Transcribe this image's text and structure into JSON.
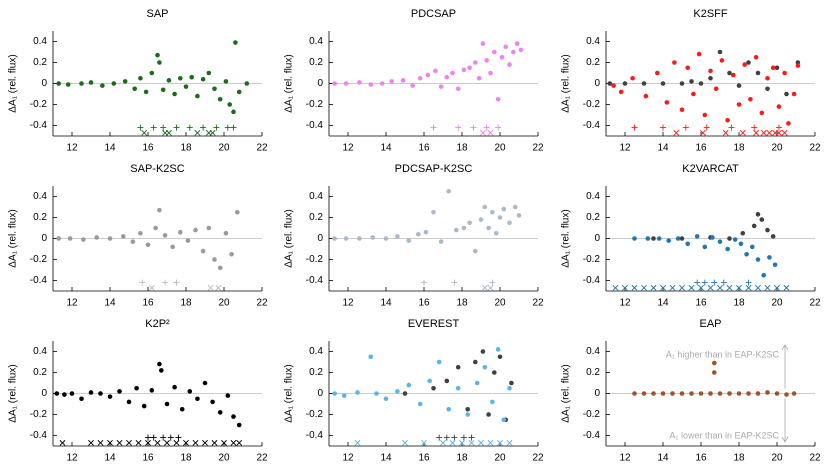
{
  "chart_data": [
    {
      "type": "scatter",
      "title": "SAP",
      "ylabel": "ΔA₁ (rel. flux)",
      "xlim": [
        11,
        22
      ],
      "ylim": [
        -0.5,
        0.5
      ],
      "xticks": [
        12,
        14,
        16,
        18,
        20,
        22
      ],
      "yticks": [
        -0.4,
        -0.2,
        0,
        0.2,
        0.4
      ],
      "zero_line": true,
      "series": [
        {
          "color": "#1b6b1b",
          "marker": "circle",
          "x": [
            11.3,
            11.8,
            12.5,
            13.0,
            13.6,
            14.2,
            14.8,
            15.3,
            15.6,
            15.9,
            16.2,
            16.5,
            16.6,
            16.8,
            17.1,
            17.4,
            17.7,
            18.0,
            18.3,
            18.6,
            18.9,
            19.2,
            19.5,
            19.8,
            20.1,
            20.3,
            20.5,
            20.6,
            20.8,
            21.2
          ],
          "values": [
            0,
            -0.01,
            0,
            0.01,
            -0.02,
            0,
            0.02,
            -0.05,
            0.05,
            -0.08,
            0.1,
            0.27,
            0.2,
            -0.06,
            0.03,
            -0.1,
            0.05,
            -0.03,
            0.06,
            -0.12,
            0.04,
            0.1,
            -0.05,
            -0.15,
            0.02,
            -0.2,
            -0.27,
            0.39,
            -0.08,
            0
          ]
        },
        {
          "color": "#1b6b1b",
          "marker": "plus",
          "x": [
            15.6,
            16.3,
            16.8,
            17.5,
            18.2,
            18.9,
            19.6,
            20.2,
            20.5
          ],
          "y": -0.42
        },
        {
          "color": "#1b6b1b",
          "marker": "cross",
          "x": [
            15.8,
            16.9,
            17.1,
            18.6,
            19.2,
            19.4
          ],
          "y": -0.47
        }
      ]
    },
    {
      "type": "scatter",
      "title": "PDCSAP",
      "ylabel": "ΔA₁ (rel. flux)",
      "xlim": [
        11,
        22
      ],
      "ylim": [
        -0.5,
        0.5
      ],
      "xticks": [
        12,
        14,
        16,
        18,
        20,
        22
      ],
      "yticks": [
        -0.4,
        -0.2,
        0,
        0.2,
        0.4
      ],
      "zero_line": true,
      "series": [
        {
          "color": "#ee82ee",
          "marker": "circle",
          "x": [
            11.3,
            11.9,
            12.6,
            13.2,
            13.8,
            14.3,
            14.9,
            15.4,
            15.8,
            16.2,
            16.6,
            16.9,
            17.2,
            17.5,
            17.8,
            18.1,
            18.4,
            18.7,
            18.9,
            19.1,
            19.3,
            19.5,
            19.7,
            19.9,
            20.1,
            20.3,
            20.5,
            20.7,
            20.9,
            21.1
          ],
          "values": [
            0,
            0,
            0.01,
            -0.01,
            0,
            0.02,
            0.03,
            -0.02,
            0.05,
            0.08,
            0.12,
            -0.03,
            0.06,
            0.1,
            -0.05,
            0.13,
            0.15,
            0.2,
            0.05,
            0.38,
            0.22,
            0.1,
            0.3,
            -0.15,
            0.25,
            0.35,
            0.18,
            0.3,
            0.38,
            0.32
          ]
        },
        {
          "color": "#ee82ee",
          "marker": "plus",
          "x": [
            16.5,
            17.8,
            18.6,
            19.3,
            19.9
          ],
          "y": -0.42
        },
        {
          "color": "#ee82ee",
          "marker": "cross",
          "x": [
            19.1,
            19.5
          ],
          "y": -0.47
        }
      ]
    },
    {
      "type": "scatter",
      "title": "K2SFF",
      "ylabel": "ΔA₁ (rel. flux)",
      "xlim": [
        11,
        22
      ],
      "ylim": [
        -0.5,
        0.5
      ],
      "xticks": [
        12,
        14,
        16,
        18,
        20,
        22
      ],
      "yticks": [
        -0.4,
        -0.2,
        0,
        0.2,
        0.4
      ],
      "zero_line": true,
      "series": [
        {
          "color": "#404040",
          "marker": "circle",
          "x": [
            11.2,
            12,
            13,
            14,
            15,
            15.5,
            16,
            16.5,
            17,
            17.5,
            18,
            18.5,
            19,
            19.5,
            20,
            20.5,
            21.1
          ],
          "values": [
            0,
            0,
            0,
            0,
            0,
            0.02,
            0,
            0.05,
            0.3,
            0.1,
            -0.02,
            0.2,
            0.1,
            -0.05,
            0.15,
            -0.1,
            0.2
          ]
        },
        {
          "color": "#ff1a1a",
          "marker": "circle",
          "x": [
            11.4,
            11.8,
            12.4,
            13.1,
            13.7,
            14.2,
            14.6,
            15.0,
            15.3,
            15.6,
            15.9,
            16.2,
            16.5,
            16.8,
            17.1,
            17.4,
            17.7,
            18.0,
            18.3,
            18.6,
            18.9,
            19.2,
            19.5,
            19.8,
            20.1,
            20.4,
            20.6,
            20.9,
            21.1
          ],
          "values": [
            -0.02,
            -0.08,
            0.05,
            -0.12,
            0.1,
            -0.18,
            0.2,
            -0.25,
            0.15,
            -0.1,
            0.28,
            -0.3,
            0.12,
            -0.05,
            0.22,
            -0.35,
            0.08,
            -0.2,
            0.18,
            -0.15,
            0.25,
            -0.28,
            0.05,
            0.15,
            -0.22,
            0.1,
            -0.38,
            -0.1,
            0.17
          ]
        },
        {
          "color": "#ff1a1a",
          "marker": "plus",
          "x": [
            12.5,
            14,
            15.2,
            16.3,
            17.6,
            18.8,
            20.1
          ],
          "y": -0.42
        },
        {
          "color": "#ff1a1a",
          "marker": "cross",
          "x": [
            14.7,
            16.1,
            17.3,
            18.2,
            18.9,
            19.3,
            19.6,
            19.9,
            20.1,
            20.4
          ],
          "y": -0.47
        }
      ]
    },
    {
      "type": "scatter",
      "title": "SAP-K2SC",
      "ylabel": "ΔA₁ (rel. flux)",
      "xlim": [
        11,
        22
      ],
      "ylim": [
        -0.5,
        0.5
      ],
      "xticks": [
        12,
        14,
        16,
        18,
        20,
        22
      ],
      "yticks": [
        -0.4,
        -0.2,
        0,
        0.2,
        0.4
      ],
      "zero_line": true,
      "series": [
        {
          "color": "#9a9a9a",
          "marker": "circle",
          "x": [
            11.3,
            11.9,
            12.6,
            13.3,
            14.0,
            14.7,
            15.2,
            15.6,
            16.0,
            16.4,
            16.6,
            16.9,
            17.3,
            17.7,
            18.1,
            18.5,
            18.9,
            19.2,
            19.5,
            19.8,
            20.1,
            20.4,
            20.7
          ],
          "values": [
            0,
            0,
            -0.01,
            0.01,
            0,
            0.02,
            -0.03,
            0.05,
            -0.06,
            0.1,
            0.27,
            0.03,
            -0.08,
            0.06,
            -0.02,
            0.08,
            -0.12,
            0.1,
            -0.2,
            -0.28,
            0.05,
            -0.15,
            0.25
          ]
        },
        {
          "color": "#bbbbbb",
          "marker": "plus",
          "x": [
            15.7,
            16.9,
            17.5
          ],
          "y": -0.42
        },
        {
          "color": "#bbbbbb",
          "marker": "cross",
          "x": [
            16.2,
            19.3,
            19.7
          ],
          "y": -0.47
        }
      ]
    },
    {
      "type": "scatter",
      "title": "PDCSAP-K2SC",
      "ylabel": "ΔA₁ (rel. flux)",
      "xlim": [
        11,
        22
      ],
      "ylim": [
        -0.5,
        0.5
      ],
      "xticks": [
        12,
        14,
        16,
        18,
        20,
        22
      ],
      "yticks": [
        -0.4,
        -0.2,
        0,
        0.2,
        0.4
      ],
      "zero_line": true,
      "series": [
        {
          "color": "#a9b9cc",
          "marker": "circle",
          "x": [
            11.3,
            11.9,
            12.6,
            13.3,
            14.0,
            14.6,
            15.2,
            15.7,
            16.1,
            16.5,
            16.9,
            17.3,
            17.7,
            18.1,
            18.4,
            18.7,
            19.0,
            19.2,
            19.4,
            19.6,
            19.8,
            20.0,
            20.2,
            20.5,
            20.8,
            21.0
          ],
          "values": [
            0,
            0,
            0,
            0.01,
            0,
            0.02,
            -0.02,
            0.04,
            0.06,
            0.25,
            -0.03,
            0.45,
            0.08,
            0.1,
            0.15,
            -0.12,
            0.18,
            0.3,
            0.1,
            0.25,
            0.05,
            0.2,
            0.28,
            0.15,
            0.3,
            0.22
          ]
        },
        {
          "color": "#a9b9cc",
          "marker": "plus",
          "x": [
            16,
            17.6,
            19.6
          ],
          "y": -0.42
        },
        {
          "color": "#a9b9cc",
          "marker": "cross",
          "x": [
            19.2,
            19.5
          ],
          "y": -0.47
        }
      ]
    },
    {
      "type": "scatter",
      "title": "K2VARCAT",
      "ylabel": "ΔA₁ (rel. flux)",
      "xlim": [
        11,
        22
      ],
      "ylim": [
        -0.5,
        0.5
      ],
      "xticks": [
        12,
        14,
        16,
        18,
        20,
        22
      ],
      "yticks": [
        -0.4,
        -0.2,
        0,
        0.2,
        0.4
      ],
      "zero_line": true,
      "series": [
        {
          "color": "#404040",
          "marker": "circle",
          "x": [
            13.5,
            15,
            16.5,
            17.5,
            18.2,
            18.8,
            19.0,
            19.2,
            19.5,
            19.8
          ],
          "values": [
            0,
            0,
            0.01,
            0,
            0.05,
            0.12,
            0.23,
            0.18,
            0.08,
            0.02
          ]
        },
        {
          "color": "#1f78b0",
          "marker": "circle",
          "x": [
            12.5,
            13.2,
            13.8,
            14.3,
            14.8,
            15.3,
            15.8,
            16.2,
            16.6,
            17.0,
            17.4,
            17.8,
            18.1,
            18.4,
            18.7,
            19.0,
            19.3,
            19.6,
            19.9
          ],
          "values": [
            0,
            0,
            0,
            -0.02,
            0,
            -0.05,
            0.02,
            -0.08,
            0.01,
            -0.03,
            -0.1,
            -0.01,
            -0.05,
            -0.15,
            -0.08,
            -0.2,
            -0.35,
            -0.18,
            -0.25
          ]
        },
        {
          "color": "#1f78b0",
          "marker": "plus",
          "x": [
            15.8,
            16.2,
            16.7,
            17.2,
            18.5
          ],
          "y": -0.42
        },
        {
          "color": "#1f78b0",
          "marker": "cross",
          "x": [
            11.5,
            12,
            12.5,
            13,
            13.5,
            14,
            14.5,
            15,
            15.5,
            16,
            16.5,
            17,
            17.5,
            18,
            18.5,
            19,
            19.5,
            20,
            20.5
          ],
          "y": -0.47
        }
      ]
    },
    {
      "type": "scatter",
      "title": "K2P²",
      "ylabel": "ΔA₁ (rel. flux)",
      "xlim": [
        11,
        22
      ],
      "ylim": [
        -0.5,
        0.5
      ],
      "xticks": [
        12,
        14,
        16,
        18,
        20,
        22
      ],
      "yticks": [
        -0.4,
        -0.2,
        0,
        0.2,
        0.4
      ],
      "zero_line": true,
      "series": [
        {
          "color": "#000000",
          "marker": "circle",
          "x": [
            11.2,
            11.6,
            12,
            12.5,
            13,
            13.5,
            14,
            14.5,
            15,
            15.4,
            15.8,
            16.2,
            16.6,
            16.7,
            17,
            17.4,
            17.8,
            18.2,
            18.6,
            19,
            19.4,
            19.8,
            20.2,
            20.5,
            20.8
          ],
          "values": [
            0,
            -0.01,
            0,
            -0.05,
            0.01,
            0,
            -0.03,
            0.02,
            -0.08,
            0.05,
            -0.12,
            0.03,
            0.28,
            0.22,
            -0.1,
            0.06,
            -0.15,
            0.02,
            -0.05,
            0.1,
            -0.08,
            -0.18,
            -0.02,
            -0.22,
            -0.3
          ]
        },
        {
          "color": "#000000",
          "marker": "plus",
          "x": [
            16,
            16.3,
            16.8,
            17.2,
            17.6
          ],
          "y": -0.42
        },
        {
          "color": "#000000",
          "marker": "cross",
          "x": [
            11.5,
            13,
            13.5,
            14,
            14.5,
            15,
            15.5,
            16,
            16.5,
            17,
            17.5,
            18,
            18.5,
            19,
            19.5,
            20,
            20.5,
            20.8
          ],
          "y": -0.47
        }
      ]
    },
    {
      "type": "scatter",
      "title": "EVEREST",
      "ylabel": "ΔA₁ (rel. flux)",
      "xlim": [
        11,
        22
      ],
      "ylim": [
        -0.5,
        0.5
      ],
      "xticks": [
        12,
        14,
        16,
        18,
        20,
        22
      ],
      "yticks": [
        -0.4,
        -0.2,
        0,
        0.2,
        0.4
      ],
      "zero_line": true,
      "series": [
        {
          "color": "#404040",
          "marker": "circle",
          "x": [
            15,
            16.5,
            17.2,
            17.8,
            18.3,
            18.7,
            19.1,
            19.4,
            19.7,
            20,
            20.3,
            20.6
          ],
          "values": [
            0,
            0.05,
            0.12,
            0.25,
            -0.15,
            0.3,
            0.4,
            -0.2,
            0.2,
            0.35,
            -0.25,
            0.1
          ]
        },
        {
          "color": "#5ab4e8",
          "marker": "circle",
          "x": [
            11.3,
            11.8,
            12.5,
            13.2,
            13.5,
            14,
            14.6,
            15.2,
            15.8,
            16.3,
            16.8,
            17.3,
            17.8,
            18.3,
            18.8,
            19.2,
            19.6,
            19.9,
            20.2,
            20.5
          ],
          "values": [
            0,
            -0.02,
            0.01,
            0.35,
            0,
            -0.05,
            0.02,
            0.08,
            -0.1,
            0.12,
            0.3,
            -0.15,
            0.05,
            -0.2,
            0.1,
            0.25,
            -0.08,
            0.42,
            -0.25,
            0.05
          ]
        },
        {
          "color": "#404040",
          "marker": "plus",
          "x": [
            16.8,
            17.2,
            17.6,
            18.1,
            18.5
          ],
          "y": -0.42
        },
        {
          "color": "#5ab4e8",
          "marker": "cross",
          "x": [
            12.5,
            15,
            16,
            17,
            17.5,
            18,
            18.5,
            19,
            19.5,
            20,
            20.5
          ],
          "y": -0.47
        }
      ]
    },
    {
      "type": "scatter",
      "title": "EAP",
      "ylabel": "ΔA₁ (rel. flux)",
      "xlim": [
        11,
        22
      ],
      "ylim": [
        -0.5,
        0.5
      ],
      "xticks": [
        12,
        14,
        16,
        18,
        20,
        22
      ],
      "yticks": [
        -0.4,
        -0.2,
        0,
        0.2,
        0.4
      ],
      "zero_line": true,
      "annotations": [
        "A₁ higher than in EAP-K2SC",
        "A₁ lower than in EAP-K2SC"
      ],
      "series": [
        {
          "color": "#a0522d",
          "marker": "circle",
          "x": [
            12.5,
            13,
            13.5,
            14,
            14.5,
            15,
            15.5,
            16,
            16.5,
            16.7,
            16.7,
            17,
            17.5,
            18,
            18.5,
            19,
            19.5,
            20,
            20.5,
            20.9
          ],
          "values": [
            0,
            0,
            0,
            0,
            0,
            0,
            0,
            0,
            0,
            0.29,
            0.2,
            0,
            0,
            0,
            0,
            0,
            0.01,
            0,
            -0.01,
            0
          ]
        }
      ]
    }
  ]
}
